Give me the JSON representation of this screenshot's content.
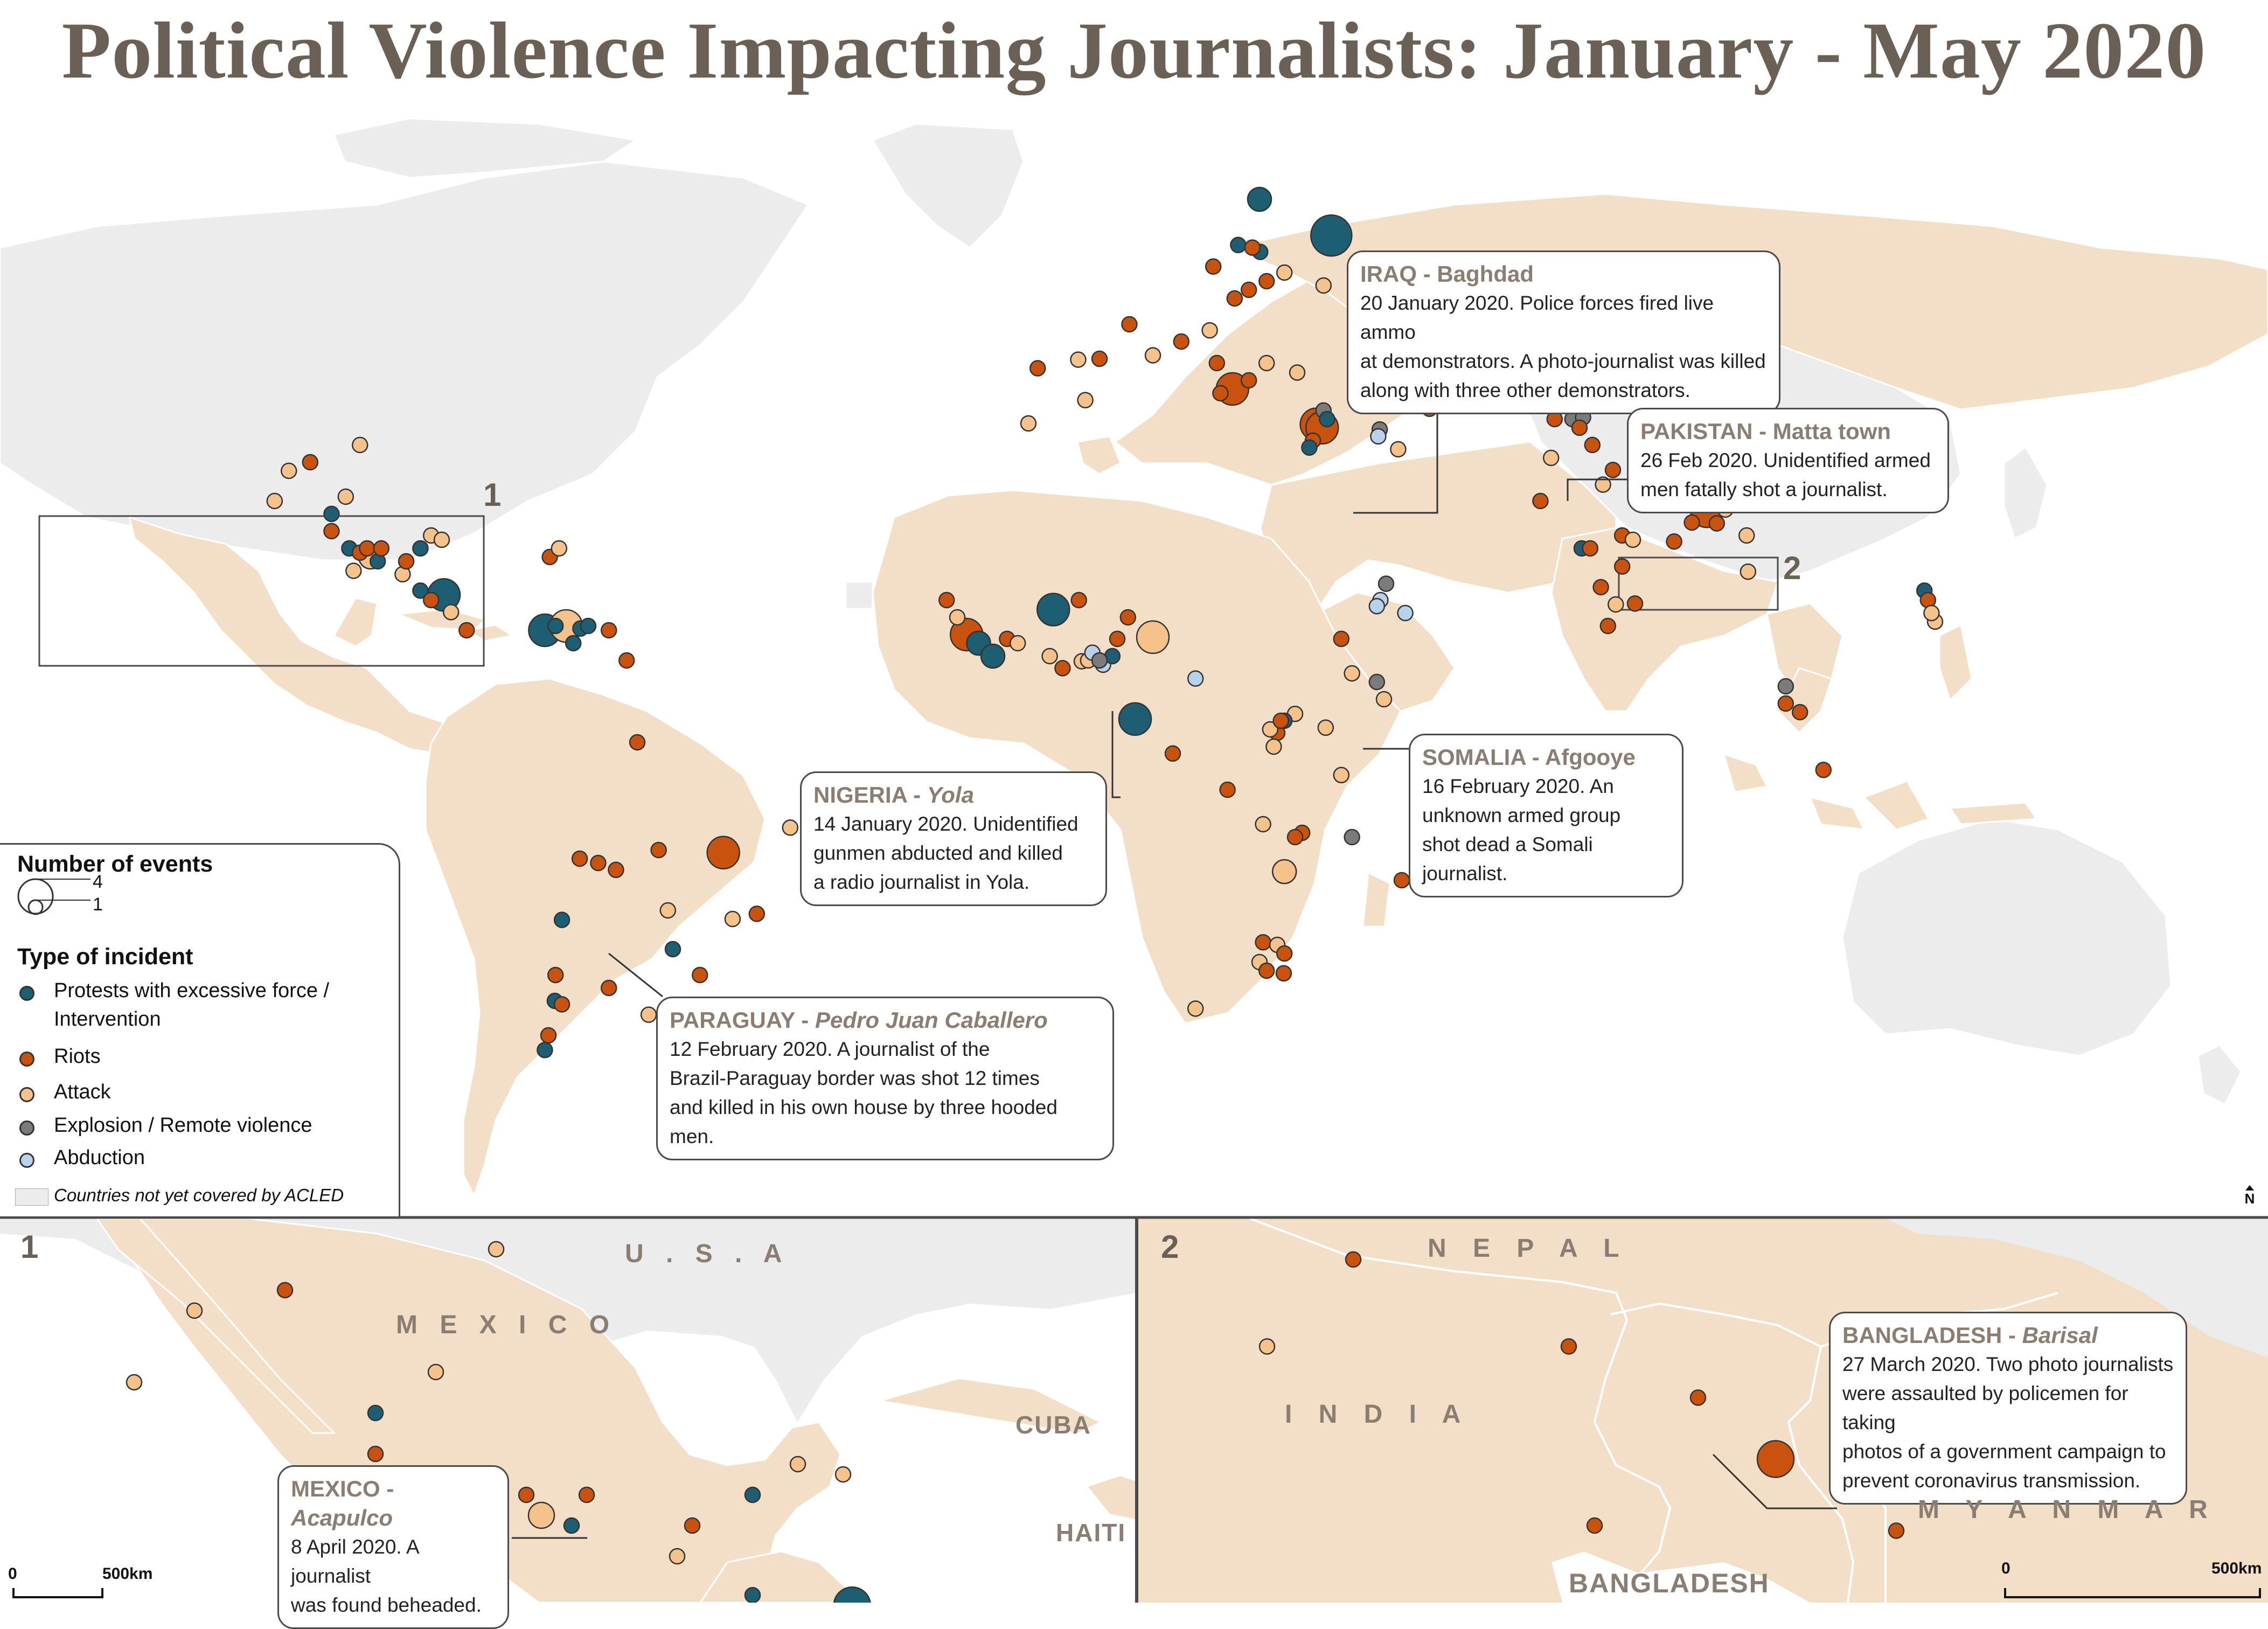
{
  "title": "Political Violence Impacting Journalists: January - May 2020",
  "colors": {
    "protests": "#1d5e73",
    "riots": "#c9520f",
    "attack": "#f5c28c",
    "explosion": "#7b7b7b",
    "abduction": "#b9d2ec",
    "covered_land": "#f3dfc7",
    "uncovered_land": "#ececec",
    "ocean": "#ffffff",
    "title_text": "#6b6055",
    "callout_heading": "#8a7d72"
  },
  "legend": {
    "size_heading": "Number of events",
    "size_max_label": "4",
    "size_min_label": "1",
    "type_heading": "Type of incident",
    "types": [
      {
        "key": "protests",
        "label_line1": "Protests with excessive force /",
        "label_line2": "Intervention",
        "icon": "teal-dot-icon"
      },
      {
        "key": "riots",
        "label_line1": "Riots",
        "icon": "orange-dot-icon"
      },
      {
        "key": "attack",
        "label_line1": "Attack",
        "icon": "peach-dot-icon"
      },
      {
        "key": "explosion",
        "label_line1": "Explosion / Remote violence",
        "icon": "grey-dot-icon"
      },
      {
        "key": "abduction",
        "label_line1": "Abduction",
        "icon": "lightblue-dot-icon"
      }
    ],
    "uncovered_label": "Countries not yet covered by ACLED"
  },
  "north_arrow": "N",
  "inset_labels": {
    "inset1": "1",
    "inset2": "2"
  },
  "callouts": {
    "iraq": {
      "country": "IRAQ",
      "place": "Baghdad",
      "place_italic": false,
      "lines": [
        "20 January 2020. Police forces fired live ammo",
        "at demonstrators. A photo-journalist was killed",
        "along with three other demonstrators."
      ]
    },
    "pakistan": {
      "country": "PAKISTAN",
      "place": "Matta town",
      "place_italic": false,
      "lines": [
        "26 Feb 2020. Unidentified armed",
        "men fatally shot a journalist."
      ]
    },
    "somalia": {
      "country": "SOMALIA",
      "place": "Afgooye",
      "place_italic": false,
      "lines": [
        "16 February 2020. An",
        "unknown armed group",
        "shot dead a Somali journalist."
      ]
    },
    "nigeria": {
      "country": "NIGERIA",
      "place": "Yola",
      "place_italic": true,
      "lines": [
        "14 January 2020. Unidentified",
        "gunmen abducted and killed",
        "a radio journalist in Yola."
      ]
    },
    "paraguay": {
      "country": "PARAGUAY",
      "place": "Pedro Juan Caballero",
      "place_italic": true,
      "lines": [
        "12 February 2020. A journalist of the",
        "Brazil-Paraguay border was shot 12 times",
        "and killed in his own house by three hooded men."
      ]
    },
    "mexico": {
      "country": "MEXICO",
      "place": "Acapulco",
      "place_italic": true,
      "lines": [
        "8 April 2020. A journalist",
        "was found beheaded."
      ]
    },
    "bangladesh": {
      "country": "BANGLADESH",
      "place": "Barisal",
      "place_italic": true,
      "lines": [
        "27 March 2020. Two photo journalists",
        "were assaulted by policemen for taking",
        "photos of a government campaign to",
        "prevent coronavirus transmission."
      ]
    }
  },
  "inset1_labels": {
    "usa": "U . S . A",
    "mexico": "M E X I C O",
    "cuba": "CUBA",
    "haiti": "HAITI"
  },
  "inset2_labels": {
    "nepal": "N E P A L",
    "india": "I N D I A",
    "myanmar": "M Y A N M A R",
    "bangladesh": "BANGLADESH"
  },
  "scale_bars": {
    "zero": "0",
    "distance": "500km"
  },
  "events_main": [
    {
      "t": "protests",
      "lon": 27.5,
      "lat": 60.0,
      "n": 2
    },
    {
      "t": "protests",
      "lon": 37.6,
      "lat": 55.8,
      "n": 4
    },
    {
      "t": "protests",
      "lon": 24.5,
      "lat": 54.7,
      "n": 1
    },
    {
      "t": "protests",
      "lon": 27.6,
      "lat": 53.9,
      "n": 1
    },
    {
      "t": "riots",
      "lon": 26.5,
      "lat": 54.4,
      "n": 1
    },
    {
      "t": "riots",
      "lon": 21.0,
      "lat": 52.2,
      "n": 1
    },
    {
      "t": "riots",
      "lon": 28.5,
      "lat": 50.5,
      "n": 1
    },
    {
      "t": "riots",
      "lon": 26.0,
      "lat": 49.5,
      "n": 1
    },
    {
      "t": "attack",
      "lon": 31.0,
      "lat": 51.5,
      "n": 1
    },
    {
      "t": "attack",
      "lon": 36.5,
      "lat": 50.0,
      "n": 1
    },
    {
      "t": "riots",
      "lon": 24.0,
      "lat": 48.5,
      "n": 1
    },
    {
      "t": "riots",
      "lon": -3.7,
      "lat": 40.4,
      "n": 1
    },
    {
      "t": "attack",
      "lon": 2.0,
      "lat": 41.4,
      "n": 1
    },
    {
      "t": "riots",
      "lon": 5.0,
      "lat": 41.5,
      "n": 1
    },
    {
      "t": "riots",
      "lon": 9.2,
      "lat": 45.5,
      "n": 1
    },
    {
      "t": "attack",
      "lon": 12.5,
      "lat": 41.9,
      "n": 1
    },
    {
      "t": "riots",
      "lon": 16.5,
      "lat": 43.5,
      "n": 1
    },
    {
      "t": "attack",
      "lon": 20.5,
      "lat": 44.8,
      "n": 1
    },
    {
      "t": "riots",
      "lon": 21.5,
      "lat": 41.0,
      "n": 1
    },
    {
      "t": "riots",
      "lon": 23.7,
      "lat": 38.0,
      "n": 3
    },
    {
      "t": "riots",
      "lon": 22.0,
      "lat": 37.5,
      "n": 1
    },
    {
      "t": "riots",
      "lon": 26.0,
      "lat": 39.0,
      "n": 1
    },
    {
      "t": "attack",
      "lon": 28.5,
      "lat": 41.0,
      "n": 1
    },
    {
      "t": "attack",
      "lon": 32.8,
      "lat": 39.9,
      "n": 1
    },
    {
      "t": "attack",
      "lon": 44.8,
      "lat": 41.7,
      "n": 1
    },
    {
      "t": "protests",
      "lon": 49.8,
      "lat": 40.4,
      "n": 1
    },
    {
      "t": "attack",
      "lon": 45.0,
      "lat": 36.5,
      "n": 1
    },
    {
      "t": "riots",
      "lon": 35.5,
      "lat": 33.9,
      "n": 3
    },
    {
      "t": "riots",
      "lon": 36.3,
      "lat": 33.5,
      "n": 3
    },
    {
      "t": "explosion",
      "lon": 36.5,
      "lat": 35.5,
      "n": 1
    },
    {
      "t": "protests",
      "lon": 37.0,
      "lat": 34.5,
      "n": 1
    },
    {
      "t": "riots",
      "lon": 35.0,
      "lat": 32.0,
      "n": 1
    },
    {
      "t": "protests",
      "lon": 34.5,
      "lat": 31.2,
      "n": 1
    },
    {
      "t": "explosion",
      "lon": 44.4,
      "lat": 33.3,
      "n": 1
    },
    {
      "t": "abduction",
      "lon": 44.2,
      "lat": 32.5,
      "n": 1
    },
    {
      "t": "attack",
      "lon": 47.0,
      "lat": 31.0,
      "n": 1
    },
    {
      "t": "attack",
      "lon": -5.0,
      "lat": 34.0,
      "n": 1
    },
    {
      "t": "attack",
      "lon": 3.0,
      "lat": 36.7,
      "n": 1
    },
    {
      "t": "riots",
      "lon": 51.4,
      "lat": 35.7,
      "n": 1
    },
    {
      "t": "protests",
      "lon": 69.2,
      "lat": 41.3,
      "n": 1
    },
    {
      "t": "protests",
      "lon": 71.4,
      "lat": 42.8,
      "n": 1
    },
    {
      "t": "riots",
      "lon": 69.0,
      "lat": 34.5,
      "n": 1
    },
    {
      "t": "explosion",
      "lon": 71.5,
      "lat": 34.5,
      "n": 1
    },
    {
      "t": "explosion",
      "lon": 73.0,
      "lat": 34.7,
      "n": 1
    },
    {
      "t": "riots",
      "lon": 72.5,
      "lat": 33.5,
      "n": 1
    },
    {
      "t": "attack",
      "lon": 68.5,
      "lat": 30.0,
      "n": 1
    },
    {
      "t": "riots",
      "lon": 67.0,
      "lat": 25.0,
      "n": 1
    },
    {
      "t": "riots",
      "lon": 74.3,
      "lat": 31.5,
      "n": 1
    },
    {
      "t": "riots",
      "lon": 77.2,
      "lat": 28.6,
      "n": 1
    },
    {
      "t": "attack",
      "lon": 75.8,
      "lat": 26.9,
      "n": 1
    },
    {
      "t": "protests",
      "lon": 72.8,
      "lat": 19.5,
      "n": 1
    },
    {
      "t": "riots",
      "lon": 74.0,
      "lat": 19.5,
      "n": 1
    },
    {
      "t": "riots",
      "lon": 78.5,
      "lat": 21.0,
      "n": 1
    },
    {
      "t": "attack",
      "lon": 80.0,
      "lat": 20.5,
      "n": 1
    },
    {
      "t": "riots",
      "lon": 78.5,
      "lat": 17.4,
      "n": 1
    },
    {
      "t": "riots",
      "lon": 75.5,
      "lat": 15.0,
      "n": 1
    },
    {
      "t": "attack",
      "lon": 77.6,
      "lat": 13.0,
      "n": 1
    },
    {
      "t": "riots",
      "lon": 80.3,
      "lat": 13.1,
      "n": 1
    },
    {
      "t": "riots",
      "lon": 76.5,
      "lat": 10.5,
      "n": 1
    },
    {
      "t": "riots",
      "lon": 81.0,
      "lat": 26.5,
      "n": 1
    },
    {
      "t": "attack",
      "lon": 84.5,
      "lat": 26.0,
      "n": 1
    },
    {
      "t": "riots",
      "lon": 85.5,
      "lat": 27.7,
      "n": 1
    },
    {
      "t": "riots",
      "lon": 88.0,
      "lat": 26.0,
      "n": 1
    },
    {
      "t": "riots",
      "lon": 89.5,
      "lat": 25.0,
      "n": 1
    },
    {
      "t": "riots",
      "lon": 90.4,
      "lat": 23.8,
      "n": 3
    },
    {
      "t": "riots",
      "lon": 91.8,
      "lat": 22.4,
      "n": 1
    },
    {
      "t": "riots",
      "lon": 92.0,
      "lat": 25.0,
      "n": 1
    },
    {
      "t": "attack",
      "lon": 91.5,
      "lat": 26.2,
      "n": 1
    },
    {
      "t": "attack",
      "lon": 93.0,
      "lat": 24.0,
      "n": 1
    },
    {
      "t": "riots",
      "lon": 88.3,
      "lat": 22.5,
      "n": 1
    },
    {
      "t": "riots",
      "lon": 85.8,
      "lat": 20.3,
      "n": 1
    },
    {
      "t": "attack",
      "lon": 96.0,
      "lat": 21.0,
      "n": 1
    },
    {
      "t": "attack",
      "lon": 96.2,
      "lat": 16.8,
      "n": 1
    },
    {
      "t": "explosion",
      "lon": 101.5,
      "lat": 3.5,
      "n": 1
    },
    {
      "t": "riots",
      "lon": 101.5,
      "lat": 1.5,
      "n": 1
    },
    {
      "t": "riots",
      "lon": 103.5,
      "lat": 0.5,
      "n": 1
    },
    {
      "t": "riots",
      "lon": 106.8,
      "lat": -6.2,
      "n": 1
    },
    {
      "t": "protests",
      "lon": 121.0,
      "lat": 14.6,
      "n": 1
    },
    {
      "t": "riots",
      "lon": 121.5,
      "lat": 13.5,
      "n": 1
    },
    {
      "t": "attack",
      "lon": 122.5,
      "lat": 11.0,
      "n": 1
    },
    {
      "t": "attack",
      "lon": 122.0,
      "lat": 12.0,
      "n": 1
    },
    {
      "t": "abduction",
      "lon": 18.5,
      "lat": 4.4,
      "n": 1
    },
    {
      "t": "explosion",
      "lon": 45.3,
      "lat": 15.4,
      "n": 1
    },
    {
      "t": "abduction",
      "lon": 44.5,
      "lat": 13.5,
      "n": 1
    },
    {
      "t": "abduction",
      "lon": 44.0,
      "lat": 12.8,
      "n": 1
    },
    {
      "t": "abduction",
      "lon": 48.0,
      "lat": 12.0,
      "n": 1
    },
    {
      "t": "riots",
      "lon": 39.0,
      "lat": 9.0,
      "n": 1
    },
    {
      "t": "attack",
      "lon": 40.5,
      "lat": 5.0,
      "n": 1
    },
    {
      "t": "explosion",
      "lon": 44.0,
      "lat": 4.0,
      "n": 1
    },
    {
      "t": "attack",
      "lon": 45.0,
      "lat": 2.0,
      "n": 1
    },
    {
      "t": "attack",
      "lon": 36.8,
      "lat": -1.3,
      "n": 1
    },
    {
      "t": "attack",
      "lon": 32.5,
      "lat": 0.3,
      "n": 1
    },
    {
      "t": "riots",
      "lon": 30.0,
      "lat": -1.9,
      "n": 1
    },
    {
      "t": "protests",
      "lon": 31.0,
      "lat": -0.5,
      "n": 1
    },
    {
      "t": "attack",
      "lon": 29.0,
      "lat": -1.5,
      "n": 1
    },
    {
      "t": "attack",
      "lon": 29.5,
      "lat": -3.5,
      "n": 1
    },
    {
      "t": "riots",
      "lon": 30.5,
      "lat": -0.5,
      "n": 1
    },
    {
      "t": "attack",
      "lon": 39.0,
      "lat": -6.8,
      "n": 1
    },
    {
      "t": "riots",
      "lon": 23.0,
      "lat": -8.5,
      "n": 1
    },
    {
      "t": "riots",
      "lon": 15.3,
      "lat": -4.3,
      "n": 1
    },
    {
      "t": "attack",
      "lon": 28.0,
      "lat": -12.5,
      "n": 1
    },
    {
      "t": "riots",
      "lon": 33.5,
      "lat": -13.5,
      "n": 1
    },
    {
      "t": "riots",
      "lon": 32.5,
      "lat": -14.0,
      "n": 1
    },
    {
      "t": "explosion",
      "lon": 40.5,
      "lat": -14.0,
      "n": 1
    },
    {
      "t": "attack",
      "lon": 31.0,
      "lat": -18.0,
      "n": 2
    },
    {
      "t": "riots",
      "lon": 47.5,
      "lat": -19.0,
      "n": 1
    },
    {
      "t": "riots",
      "lon": 28.0,
      "lat": -26.2,
      "n": 1
    },
    {
      "t": "attack",
      "lon": 30.0,
      "lat": -26.5,
      "n": 1
    },
    {
      "t": "riots",
      "lon": 31.0,
      "lat": -27.5,
      "n": 1
    },
    {
      "t": "attack",
      "lon": 27.5,
      "lat": -28.5,
      "n": 1
    },
    {
      "t": "riots",
      "lon": 28.5,
      "lat": -29.5,
      "n": 1
    },
    {
      "t": "attack",
      "lon": 18.5,
      "lat": -33.9,
      "n": 1
    },
    {
      "t": "riots",
      "lon": 30.9,
      "lat": -29.8,
      "n": 1
    },
    {
      "t": "riots",
      "lon": -16.5,
      "lat": 13.5,
      "n": 1
    },
    {
      "t": "attack",
      "lon": -15.0,
      "lat": 11.5,
      "n": 1
    },
    {
      "t": "riots",
      "lon": -13.7,
      "lat": 9.5,
      "n": 3
    },
    {
      "t": "protests",
      "lon": -12.0,
      "lat": 8.5,
      "n": 2
    },
    {
      "t": "protests",
      "lon": -10.0,
      "lat": 7.0,
      "n": 2
    },
    {
      "t": "riots",
      "lon": -8.0,
      "lat": 9.0,
      "n": 1
    },
    {
      "t": "attack",
      "lon": -6.5,
      "lat": 8.5,
      "n": 1
    },
    {
      "t": "protests",
      "lon": -1.5,
      "lat": 12.4,
      "n": 3
    },
    {
      "t": "attack",
      "lon": -2.0,
      "lat": 7.0,
      "n": 1
    },
    {
      "t": "riots",
      "lon": -0.2,
      "lat": 5.6,
      "n": 1
    },
    {
      "t": "attack",
      "lon": 2.5,
      "lat": 6.4,
      "n": 1
    },
    {
      "t": "riots",
      "lon": 2.1,
      "lat": 13.5,
      "n": 1
    },
    {
      "t": "riots",
      "lon": 7.5,
      "lat": 9.0,
      "n": 1
    },
    {
      "t": "attack",
      "lon": 3.4,
      "lat": 6.5,
      "n": 1
    },
    {
      "t": "abduction",
      "lon": 4.0,
      "lat": 7.4,
      "n": 1
    },
    {
      "t": "abduction",
      "lon": 5.5,
      "lat": 6.0,
      "n": 1
    },
    {
      "t": "protests",
      "lon": 6.8,
      "lat": 7.0,
      "n": 1
    },
    {
      "t": "explosion",
      "lon": 5.0,
      "lat": 6.5,
      "n": 1
    },
    {
      "t": "attack",
      "lon": 12.5,
      "lat": 9.2,
      "n": 3
    },
    {
      "t": "riots",
      "lon": 9.0,
      "lat": 11.5,
      "n": 1
    },
    {
      "t": "protests",
      "lon": 10.0,
      "lat": -0.3,
      "n": 3
    },
    {
      "t": "attack",
      "lon": -99.0,
      "lat": 31.5,
      "n": 1
    },
    {
      "t": "attack",
      "lon": -109.0,
      "lat": 28.5,
      "n": 1
    },
    {
      "t": "attack",
      "lon": -101.0,
      "lat": 25.5,
      "n": 1
    },
    {
      "t": "riots",
      "lon": -106.0,
      "lat": 29.5,
      "n": 1
    },
    {
      "t": "attack",
      "lon": -111.0,
      "lat": 25.0,
      "n": 1
    },
    {
      "t": "protests",
      "lon": -103.0,
      "lat": 23.5,
      "n": 1
    },
    {
      "t": "riots",
      "lon": -103.0,
      "lat": 21.5,
      "n": 1
    },
    {
      "t": "protests",
      "lon": -100.5,
      "lat": 19.5,
      "n": 1
    },
    {
      "t": "riots",
      "lon": -99.0,
      "lat": 19.0,
      "n": 1
    },
    {
      "t": "attack",
      "lon": -97.5,
      "lat": 18.5,
      "n": 2
    },
    {
      "t": "riots",
      "lon": -98.0,
      "lat": 19.5,
      "n": 1
    },
    {
      "t": "protests",
      "lon": -96.5,
      "lat": 18.0,
      "n": 1
    },
    {
      "t": "riots",
      "lon": -96.0,
      "lat": 19.5,
      "n": 1
    },
    {
      "t": "attack",
      "lon": -99.9,
      "lat": 16.9,
      "n": 1
    },
    {
      "t": "attack",
      "lon": -93.0,
      "lat": 16.5,
      "n": 1
    },
    {
      "t": "riots",
      "lon": -92.5,
      "lat": 18.0,
      "n": 1
    },
    {
      "t": "protests",
      "lon": -90.5,
      "lat": 19.5,
      "n": 1
    },
    {
      "t": "attack",
      "lon": -89.0,
      "lat": 21.0,
      "n": 1
    },
    {
      "t": "attack",
      "lon": -87.5,
      "lat": 20.5,
      "n": 1
    },
    {
      "t": "riots",
      "lon": -72.3,
      "lat": 18.5,
      "n": 1
    },
    {
      "t": "attack",
      "lon": -71.0,
      "lat": 19.5,
      "n": 1
    },
    {
      "t": "protests",
      "lon": -90.5,
      "lat": 14.6,
      "n": 1
    },
    {
      "t": "riots",
      "lon": -89.0,
      "lat": 13.5,
      "n": 1
    },
    {
      "t": "protests",
      "lon": -87.2,
      "lat": 14.1,
      "n": 3
    },
    {
      "t": "attack",
      "lon": -86.2,
      "lat": 12.1,
      "n": 1
    },
    {
      "t": "riots",
      "lon": -84.0,
      "lat": 10.0,
      "n": 1
    },
    {
      "t": "protests",
      "lon": -73.0,
      "lat": 10.0,
      "n": 3
    },
    {
      "t": "attack",
      "lon": -70.0,
      "lat": 10.5,
      "n": 3
    },
    {
      "t": "protests",
      "lon": -71.5,
      "lat": 10.5,
      "n": 1
    },
    {
      "t": "protests",
      "lon": -68.0,
      "lat": 10.2,
      "n": 1
    },
    {
      "t": "protests",
      "lon": -66.9,
      "lat": 10.5,
      "n": 1
    },
    {
      "t": "riots",
      "lon": -64.0,
      "lat": 10.0,
      "n": 1
    },
    {
      "t": "protests",
      "lon": -69.0,
      "lat": 8.5,
      "n": 1
    },
    {
      "t": "riots",
      "lon": -61.5,
      "lat": 6.5,
      "n": 1
    },
    {
      "t": "riots",
      "lon": -60.0,
      "lat": -3.0,
      "n": 1
    },
    {
      "t": "riots",
      "lon": -47.9,
      "lat": -15.8,
      "n": 3
    },
    {
      "t": "riots",
      "lon": -57.0,
      "lat": -15.5,
      "n": 1
    },
    {
      "t": "riots",
      "lon": -63.0,
      "lat": -17.8,
      "n": 1
    },
    {
      "t": "riots",
      "lon": -65.5,
      "lat": -17.0,
      "n": 1
    },
    {
      "t": "riots",
      "lon": -68.1,
      "lat": -16.5,
      "n": 1
    },
    {
      "t": "attack",
      "lon": -55.7,
      "lat": -22.5,
      "n": 1
    },
    {
      "t": "protests",
      "lon": -70.6,
      "lat": -23.6,
      "n": 1
    },
    {
      "t": "protests",
      "lon": -55.0,
      "lat": -27.0,
      "n": 1
    },
    {
      "t": "riots",
      "lon": -43.2,
      "lat": -22.9,
      "n": 1
    },
    {
      "t": "attack",
      "lon": -46.6,
      "lat": -23.5,
      "n": 1
    },
    {
      "t": "attack",
      "lon": -38.5,
      "lat": -12.9,
      "n": 1
    },
    {
      "t": "riots",
      "lon": -51.2,
      "lat": -30.0,
      "n": 1
    },
    {
      "t": "riots",
      "lon": -71.5,
      "lat": -30.0,
      "n": 1
    },
    {
      "t": "protests",
      "lon": -71.6,
      "lat": -33.0,
      "n": 1
    },
    {
      "t": "riots",
      "lon": -70.6,
      "lat": -33.4,
      "n": 1
    },
    {
      "t": "riots",
      "lon": -64.0,
      "lat": -31.5,
      "n": 1
    },
    {
      "t": "riots",
      "lon": -72.5,
      "lat": -37.0,
      "n": 1
    },
    {
      "t": "protests",
      "lon": -73.0,
      "lat": -38.7,
      "n": 1
    },
    {
      "t": "attack",
      "lon": -58.4,
      "lat": -34.6,
      "n": 1
    }
  ]
}
